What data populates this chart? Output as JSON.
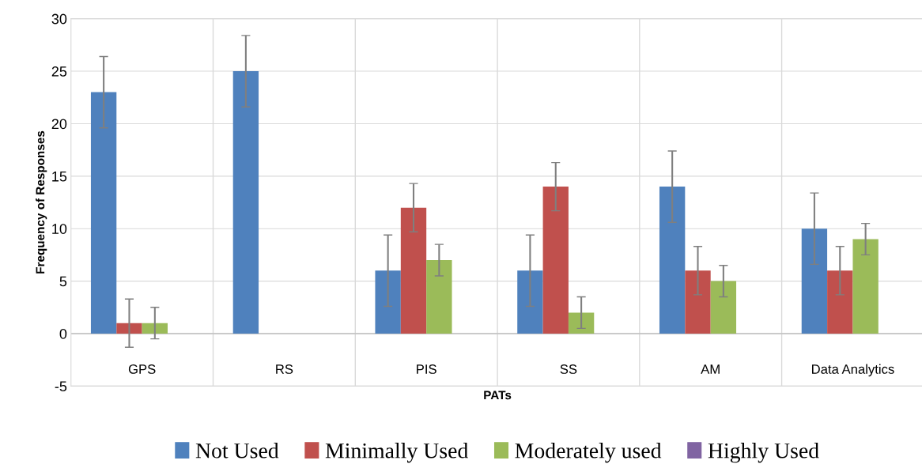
{
  "chart_data": {
    "type": "bar",
    "xlabel": "PATs",
    "ylabel": "Frequency of Responses",
    "categories": [
      "GPS",
      "RS",
      "PIS",
      "SS",
      "AM",
      "Data Analytics"
    ],
    "series": [
      {
        "name": "Not Used",
        "color": "#4f81bd",
        "values": [
          23,
          25,
          6,
          6,
          14,
          10
        ],
        "errors": [
          3.4,
          3.4,
          3.4,
          3.4,
          3.4,
          3.4
        ]
      },
      {
        "name": "Minimally Used",
        "color": "#c0504d",
        "values": [
          1,
          0,
          12,
          14,
          6,
          6
        ],
        "errors": [
          2.3,
          null,
          2.3,
          2.3,
          2.3,
          2.3
        ]
      },
      {
        "name": "Moderately used",
        "color": "#9bbb59",
        "values": [
          1,
          0,
          7,
          2,
          5,
          9
        ],
        "errors": [
          1.5,
          null,
          1.5,
          1.5,
          1.5,
          1.5
        ]
      },
      {
        "name": "Highly Used",
        "color": "#8064a2",
        "values": [
          0,
          0,
          0,
          0,
          0,
          0
        ]
      }
    ],
    "ylim": [
      -5,
      30
    ],
    "yticks": [
      -5,
      0,
      5,
      10,
      15,
      20,
      25,
      30
    ],
    "grid": true,
    "legend": "bottom"
  }
}
